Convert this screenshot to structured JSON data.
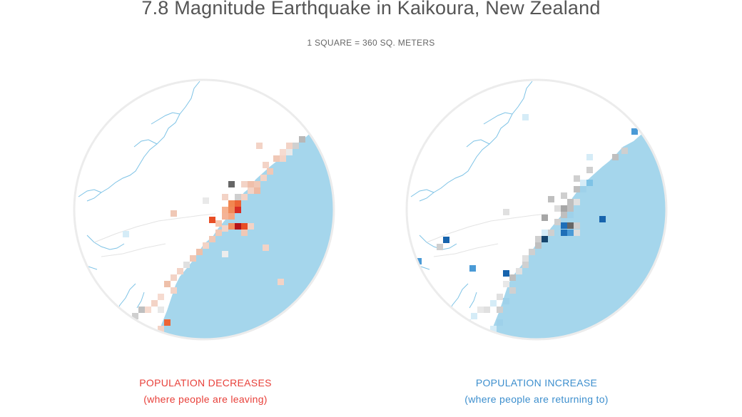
{
  "header": {
    "title": "7.8 Magnitude Earthquake in Kaikoura, New Zealand",
    "scale_note": "1 SQUARE = 360 SQ. METERS"
  },
  "colors": {
    "sea": "#a5d6ec",
    "rivers": "#7ec3e6",
    "circle_border": "#ececec",
    "decrease_text": "#e8403a",
    "increase_text": "#3d8fce"
  },
  "maps": [
    {
      "id": "decrease",
      "caption_title": "POPULATION DECREASES",
      "caption_sub": "(where people are leaving)",
      "caption_color": "#e8403a"
    },
    {
      "id": "increase",
      "caption_title": "POPULATION INCREASE",
      "caption_sub": "(where people are returning to)",
      "caption_color": "#3d8fce"
    }
  ]
}
